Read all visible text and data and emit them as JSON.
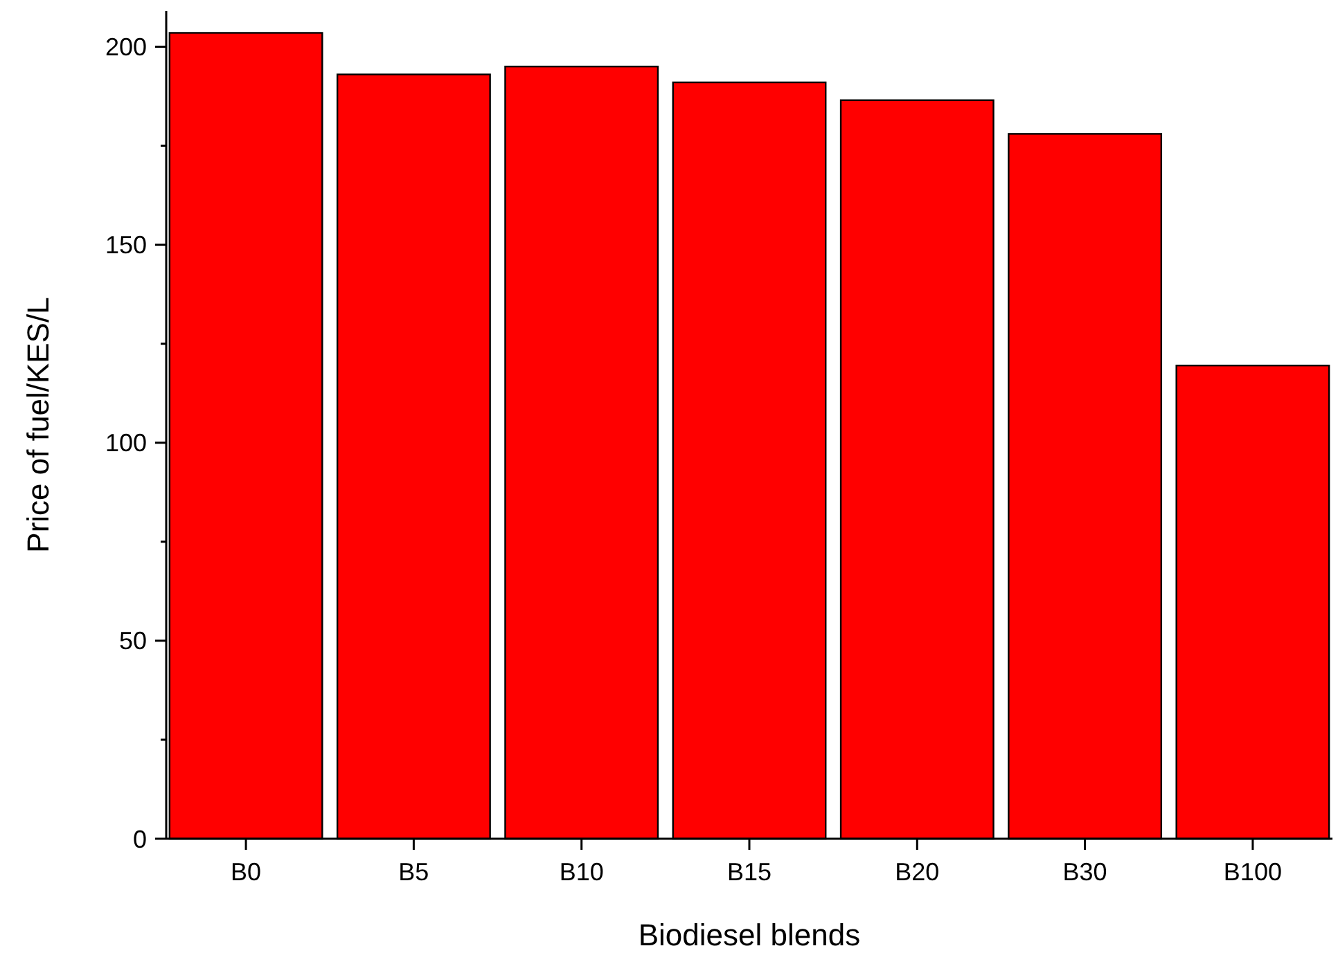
{
  "chart_data": {
    "type": "bar",
    "xlabel": "Biodiesel blends",
    "ylabel": "Price of fuel/KES/L",
    "categories": [
      "B0",
      "B5",
      "B10",
      "B15",
      "B20",
      "B30",
      "B100"
    ],
    "values": [
      203.5,
      193,
      195,
      191,
      186.5,
      178,
      119.5
    ],
    "color": "#ff0000",
    "ylim": [
      0,
      209
    ],
    "yticks": [
      0,
      {
        "value": 25,
        "label": null
      },
      50,
      {
        "value": 75,
        "label": null
      },
      100,
      {
        "value": 125,
        "label": null
      },
      150,
      {
        "value": 175,
        "label": null
      },
      200
    ],
    "grid": false
  }
}
